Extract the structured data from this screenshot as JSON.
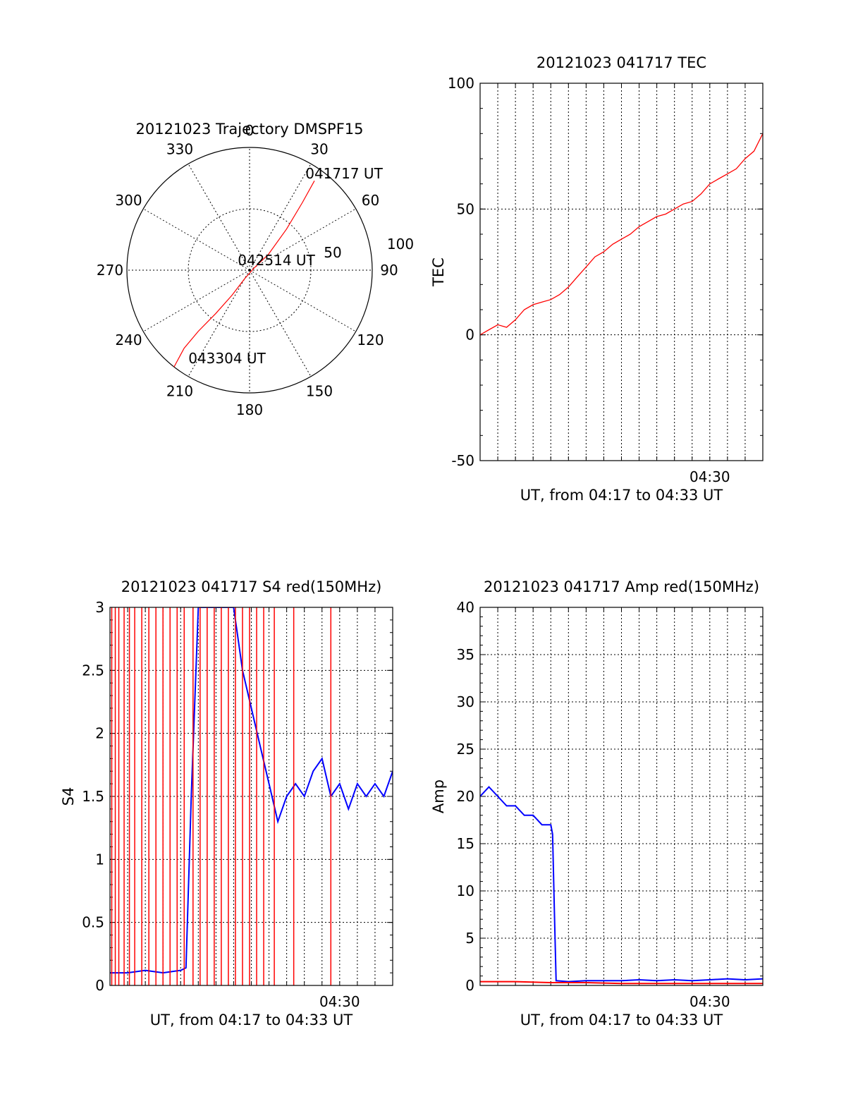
{
  "colors": {
    "red": "#ff0000",
    "blue": "#0000ff",
    "axis": "#000000"
  },
  "chart_data": [
    {
      "type": "polar",
      "title": "20121023 Trajectory DMSPF15",
      "angle_labels": [
        "0",
        "30",
        "60",
        "90",
        "120",
        "150",
        "180",
        "210",
        "240",
        "270",
        "300",
        "330"
      ],
      "radial_labels": [
        "50",
        "100"
      ],
      "rlim": [
        0,
        100
      ],
      "annotations": [
        "041717 UT",
        "042514 UT",
        "043304 UT"
      ],
      "series": [
        {
          "color": "red",
          "points": [
            [
              36,
              90
            ],
            [
              38,
              70
            ],
            [
              42,
              45
            ],
            [
              50,
              20
            ],
            [
              65,
              4
            ],
            [
              210,
              8
            ],
            [
              215,
              25
            ],
            [
              218,
              45
            ],
            [
              220,
              65
            ],
            [
              220,
              83
            ],
            [
              218,
              100
            ]
          ]
        }
      ]
    },
    {
      "type": "line",
      "title": "20121023 041717 TEC",
      "ylabel": "TEC",
      "xlabel": "UT, from 04:17 to 04:33 UT",
      "xtick_labels": [
        "04:30"
      ],
      "yticks": [
        "-50",
        "0",
        "50",
        "100"
      ],
      "ylim": [
        -50,
        100
      ],
      "xlim_minutes": [
        0,
        16
      ],
      "grid": true,
      "series": [
        {
          "color": "red",
          "x": [
            0,
            0.5,
            1,
            1.5,
            2,
            2.5,
            3,
            3.5,
            4,
            4.5,
            5,
            5.5,
            6,
            6.5,
            7,
            7.5,
            8,
            8.5,
            9,
            9.5,
            10,
            10.5,
            11,
            11.5,
            12,
            12.5,
            13,
            13.5,
            14,
            14.5,
            15,
            15.5,
            16
          ],
          "y": [
            0,
            2,
            4,
            3,
            6,
            10,
            12,
            13,
            14,
            16,
            19,
            23,
            27,
            31,
            33,
            36,
            38,
            40,
            43,
            45,
            47,
            48,
            50,
            52,
            53,
            56,
            60,
            62,
            64,
            66,
            70,
            73,
            80
          ]
        }
      ]
    },
    {
      "type": "line",
      "title": "20121023 041717 S4 red(150MHz)",
      "ylabel": "S4",
      "xlabel": "UT, from 04:17 to 04:33 UT",
      "xtick_labels": [
        "04:30"
      ],
      "yticks": [
        "0",
        "0.5",
        "1",
        "1.5",
        "2",
        "2.5",
        "3"
      ],
      "ylim": [
        0,
        3
      ],
      "xlim_minutes": [
        0,
        16
      ],
      "grid": true,
      "series": [
        {
          "color": "blue",
          "x": [
            0,
            1,
            2,
            3,
            4,
            4.3,
            4.6,
            5,
            5.5,
            6,
            6.5,
            7,
            7.5,
            8,
            8.5,
            9,
            9.5,
            10,
            10.5,
            11,
            11.5,
            12,
            12.5,
            13,
            13.5,
            14,
            14.5,
            15,
            15.5,
            16
          ],
          "y": [
            0.1,
            0.1,
            0.12,
            0.1,
            0.12,
            0.14,
            1.5,
            3,
            3,
            3,
            3,
            3,
            2.5,
            2.2,
            1.9,
            1.6,
            1.3,
            1.5,
            1.6,
            1.5,
            1.7,
            1.8,
            1.5,
            1.6,
            1.4,
            1.6,
            1.5,
            1.6,
            1.5,
            1.7
          ]
        },
        {
          "color": "red",
          "x": [
            0.1,
            0.3,
            0.5,
            0.8,
            1.1,
            1.4,
            1.8,
            2.2,
            2.6,
            3.0,
            3.4,
            3.8,
            4.2,
            4.7,
            5.1,
            5.5,
            5.9,
            6.3,
            6.7,
            7.1,
            7.5,
            7.9,
            8.3,
            8.7,
            9.3,
            10.4,
            12.5
          ],
          "y": [
            3,
            3,
            3,
            3,
            3,
            3,
            3,
            3,
            3,
            3,
            3,
            3,
            3,
            3,
            3,
            3,
            3,
            3,
            3,
            3,
            3,
            3,
            3,
            3,
            3,
            3,
            3
          ]
        }
      ]
    },
    {
      "type": "line",
      "title": "20121023 041717 Amp red(150MHz)",
      "ylabel": "Amp",
      "xlabel": "UT, from 04:17 to 04:33 UT",
      "xtick_labels": [
        "04:30"
      ],
      "yticks": [
        "0",
        "5",
        "10",
        "15",
        "20",
        "25",
        "30",
        "35",
        "40"
      ],
      "ylim": [
        0,
        40
      ],
      "xlim_minutes": [
        0,
        16
      ],
      "grid": true,
      "series": [
        {
          "color": "blue",
          "x": [
            0,
            0.5,
            1,
            1.5,
            2,
            2.5,
            3,
            3.5,
            4,
            4.1,
            4.2,
            4.3,
            5,
            6,
            7,
            8,
            9,
            10,
            11,
            12,
            13,
            14,
            15,
            16
          ],
          "y": [
            20,
            21,
            20,
            19,
            19,
            18,
            18,
            17,
            17,
            16,
            8,
            0.5,
            0.4,
            0.5,
            0.5,
            0.5,
            0.6,
            0.5,
            0.6,
            0.5,
            0.6,
            0.7,
            0.6,
            0.7
          ]
        },
        {
          "color": "red",
          "x": [
            0,
            2,
            4,
            6,
            8,
            10,
            12,
            14,
            16
          ],
          "y": [
            0.4,
            0.4,
            0.3,
            0.3,
            0.2,
            0.2,
            0.2,
            0.2,
            0.2
          ]
        }
      ]
    }
  ]
}
